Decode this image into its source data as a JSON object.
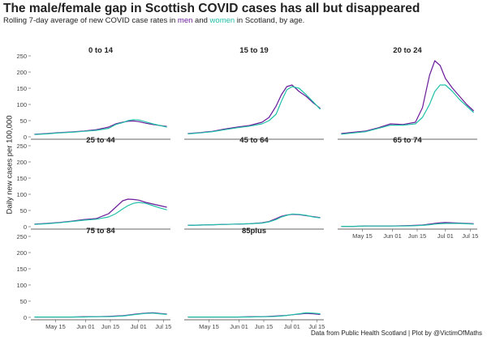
{
  "title": "The male/female gap in Scottish COVID cases has all but disappeared",
  "subtitle": {
    "pre": "Rolling 7-day average of new COVID case rates in ",
    "men": "men",
    "mid": " and ",
    "women": "women",
    "post": " in Scotland, by age."
  },
  "colors": {
    "men": "#6a1b9a",
    "women": "#20c0a8"
  },
  "caption": "Data from Public Health Scotland | Plot by @VictimOfMaths",
  "chart_data": {
    "type": "line",
    "ylabel": "Daily new cases per 100,000",
    "ylim": [
      0,
      250
    ],
    "y_ticks": [
      0,
      50,
      100,
      150,
      200,
      250
    ],
    "x_ticks": [
      "May 15",
      "Jun 01",
      "Jun 15",
      "Jul 01",
      "Jul 15"
    ],
    "x": [
      "2021-05-03",
      "2021-05-10",
      "2021-05-17",
      "2021-05-24",
      "2021-05-31",
      "2021-06-07",
      "2021-06-14",
      "2021-06-18",
      "2021-06-22",
      "2021-06-25",
      "2021-06-28",
      "2021-07-01",
      "2021-07-05",
      "2021-07-09",
      "2021-07-13",
      "2021-07-17"
    ],
    "panels": [
      {
        "name": "0 to 14",
        "series": [
          {
            "name": "men",
            "values": [
              8,
              10,
              13,
              15,
              18,
              22,
              30,
              40,
              45,
              48,
              49,
              47,
              42,
              38,
              35,
              32
            ]
          },
          {
            "name": "women",
            "values": [
              7,
              9,
              12,
              14,
              17,
              20,
              26,
              38,
              44,
              50,
              53,
              52,
              46,
              40,
              35,
              30
            ]
          }
        ]
      },
      {
        "name": "15 to 19",
        "series": [
          {
            "name": "men",
            "values": [
              10,
              13,
              17,
              24,
              30,
              35,
              45,
              60,
              95,
              130,
              155,
              160,
              140,
              125,
              105,
              88
            ]
          },
          {
            "name": "women",
            "values": [
              9,
              12,
              16,
              22,
              28,
              33,
              40,
              50,
              70,
              110,
              145,
              155,
              150,
              130,
              108,
              85
            ]
          }
        ]
      },
      {
        "name": "20 to 24",
        "series": [
          {
            "name": "men",
            "values": [
              10,
              14,
              18,
              28,
              40,
              38,
              45,
              90,
              190,
              235,
              220,
              180,
              150,
              125,
              100,
              80
            ]
          },
          {
            "name": "women",
            "values": [
              8,
              12,
              16,
              26,
              36,
              36,
              40,
              60,
              100,
              140,
              160,
              160,
              140,
              115,
              95,
              75
            ]
          }
        ]
      },
      {
        "name": "25 to 44",
        "series": [
          {
            "name": "men",
            "values": [
              8,
              10,
              13,
              17,
              22,
              25,
              40,
              60,
              80,
              85,
              84,
              82,
              75,
              70,
              65,
              60
            ]
          },
          {
            "name": "women",
            "values": [
              7,
              9,
              12,
              16,
              20,
              23,
              30,
              40,
              55,
              65,
              72,
              75,
              72,
              65,
              58,
              52
            ]
          }
        ]
      },
      {
        "name": "45 to 64",
        "series": [
          {
            "name": "men",
            "values": [
              4,
              5,
              6,
              7,
              8,
              9,
              12,
              16,
              25,
              32,
              36,
              38,
              37,
              34,
              31,
              28
            ]
          },
          {
            "name": "women",
            "values": [
              4,
              5,
              6,
              7,
              8,
              9,
              11,
              15,
              22,
              30,
              35,
              39,
              38,
              35,
              30,
              27
            ]
          }
        ]
      },
      {
        "name": "65 to 74",
        "series": [
          {
            "name": "men",
            "values": [
              1,
              1,
              2,
              2,
              2,
              3,
              4,
              5,
              8,
              10,
              12,
              13,
              12,
              11,
              10,
              9
            ]
          },
          {
            "name": "women",
            "values": [
              1,
              1,
              2,
              2,
              2,
              2,
              3,
              4,
              6,
              8,
              9,
              10,
              10,
              10,
              9,
              8
            ]
          }
        ]
      },
      {
        "name": "75 to 84",
        "series": [
          {
            "name": "men",
            "values": [
              1,
              1,
              1,
              1,
              2,
              2,
              3,
              4,
              5,
              7,
              9,
              11,
              13,
              14,
              12,
              10
            ]
          },
          {
            "name": "women",
            "values": [
              1,
              1,
              1,
              1,
              1,
              2,
              2,
              3,
              4,
              6,
              8,
              10,
              12,
              13,
              11,
              9
            ]
          }
        ]
      },
      {
        "name": "85plus",
        "series": [
          {
            "name": "men",
            "values": [
              1,
              1,
              1,
              1,
              1,
              2,
              2,
              3,
              4,
              5,
              6,
              8,
              10,
              12,
              11,
              9
            ]
          },
          {
            "name": "women",
            "values": [
              1,
              1,
              1,
              1,
              1,
              1,
              2,
              2,
              3,
              4,
              6,
              8,
              11,
              14,
              13,
              11
            ]
          }
        ]
      }
    ]
  }
}
